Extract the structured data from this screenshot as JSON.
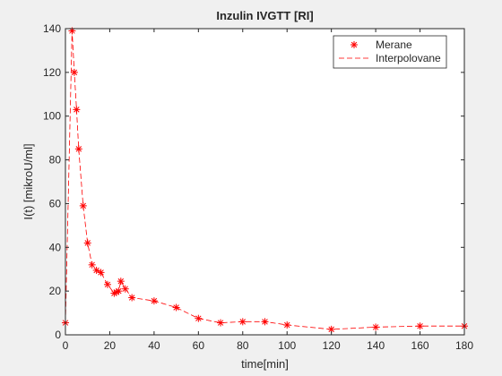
{
  "chart_data": {
    "type": "line",
    "title": "Inzulin IVGTT [RI]",
    "xlabel": "time[min]",
    "ylabel": "I(t) [mikroU/ml]",
    "xlim": [
      0,
      180
    ],
    "ylim": [
      0,
      140
    ],
    "xticks": [
      0,
      20,
      40,
      60,
      80,
      100,
      120,
      140,
      160,
      180
    ],
    "yticks": [
      0,
      20,
      40,
      60,
      80,
      100,
      120,
      140
    ],
    "grid": false,
    "legend_position": "top-right",
    "series": [
      {
        "name": "Merane",
        "style": "markers",
        "marker": "asterisk",
        "color": "#ff0000",
        "x": [
          0,
          3,
          4,
          5,
          6,
          8,
          10,
          12,
          14,
          16,
          19,
          22,
          23,
          24,
          25,
          27,
          30,
          40,
          50,
          60,
          70,
          80,
          90,
          100,
          120,
          140,
          160,
          180
        ],
        "y": [
          5.5,
          139,
          120,
          103,
          85,
          59,
          42,
          32,
          29.5,
          28.5,
          23,
          19,
          19.5,
          20,
          24.5,
          21,
          17,
          15.5,
          12.5,
          7.5,
          5.5,
          6,
          6,
          4.5,
          2.5,
          3.5,
          4,
          4
        ]
      },
      {
        "name": "Interpolovane",
        "style": "dashed-line",
        "color": "#ff0000",
        "x": [
          0,
          3,
          4,
          5,
          6,
          8,
          10,
          12,
          14,
          16,
          19,
          22,
          23,
          24,
          25,
          27,
          30,
          40,
          50,
          60,
          70,
          80,
          90,
          100,
          120,
          140,
          160,
          180
        ],
        "y": [
          5.5,
          139,
          120,
          103,
          85,
          59,
          42,
          32,
          29.5,
          28.5,
          23,
          19,
          19.5,
          20,
          24.5,
          21,
          17,
          15.5,
          12.5,
          7.5,
          5.5,
          6,
          6,
          4.5,
          2.5,
          3.5,
          4,
          4
        ]
      }
    ]
  }
}
